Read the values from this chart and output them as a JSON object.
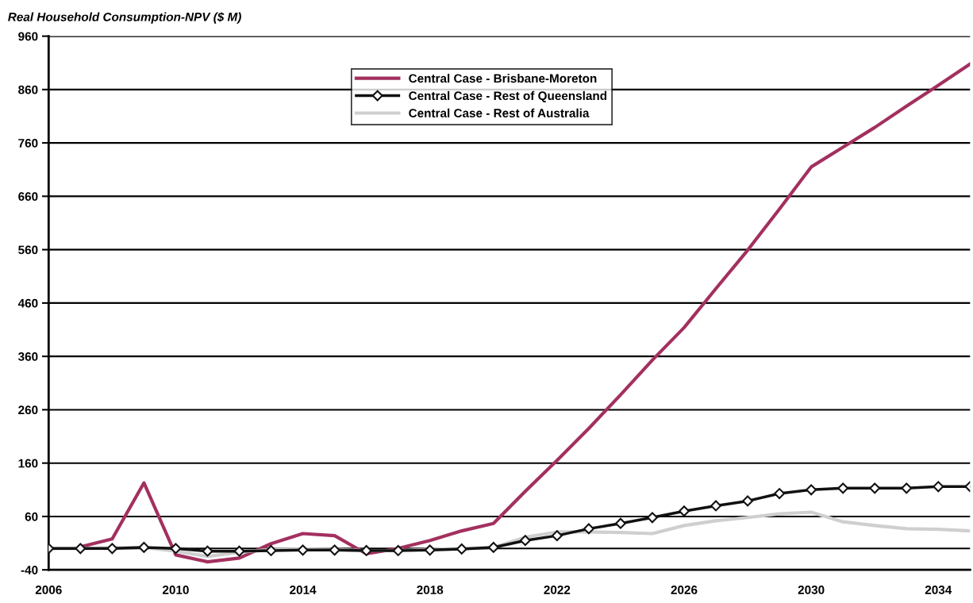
{
  "chart_data": {
    "type": "line",
    "title": "Real Household Consumption-NPV ($ M)",
    "x": [
      2006,
      2007,
      2008,
      2009,
      2010,
      2011,
      2012,
      2013,
      2014,
      2015,
      2016,
      2017,
      2018,
      2019,
      2020,
      2021,
      2022,
      2023,
      2024,
      2025,
      2026,
      2027,
      2028,
      2029,
      2030,
      2031,
      2032,
      2033,
      2034,
      2035
    ],
    "series": [
      {
        "name": "Central Case - Brisbane-Moreton",
        "color": "#a3305f",
        "marker": "none",
        "values": [
          null,
          3,
          18,
          123,
          -12,
          -25,
          -18,
          9,
          28,
          24,
          -10,
          0,
          15,
          33,
          47,
          107,
          165,
          225,
          288,
          353,
          414,
          487,
          559,
          636,
          715,
          752,
          789,
          829,
          868,
          908
        ]
      },
      {
        "name": "Central Case - Rest of Queensland",
        "color": "#111111",
        "marker": "diamond",
        "values": [
          0,
          0,
          0,
          2,
          0,
          -5,
          -5,
          -4,
          -3,
          -3,
          -4,
          -4,
          -3,
          -1,
          2,
          15,
          24,
          37,
          47,
          58,
          70,
          80,
          89,
          103,
          110,
          113,
          113,
          113,
          116,
          116
        ]
      },
      {
        "name": "Central Case - Rest of Australia",
        "color": "#cfcfcf",
        "marker": "none",
        "values": [
          0,
          0,
          1,
          2,
          -5,
          -15,
          -7,
          -2,
          -1,
          -2,
          -4,
          -4,
          -2,
          0,
          2,
          21,
          31,
          31,
          30,
          28,
          43,
          52,
          58,
          65,
          68,
          50,
          43,
          37,
          36,
          33
        ]
      }
    ],
    "xlim": [
      2006,
      2035
    ],
    "xticks": [
      2006,
      2010,
      2014,
      2018,
      2022,
      2026,
      2030,
      2034
    ],
    "ylim": [
      -40,
      960
    ],
    "yticks": [
      -40,
      60,
      160,
      260,
      360,
      460,
      560,
      660,
      760,
      860,
      960
    ],
    "ref_lines": [
      {
        "axis": "y",
        "value": 0,
        "color": "#000000"
      }
    ],
    "grid": "y",
    "legend": "top",
    "line_style": "solid"
  }
}
